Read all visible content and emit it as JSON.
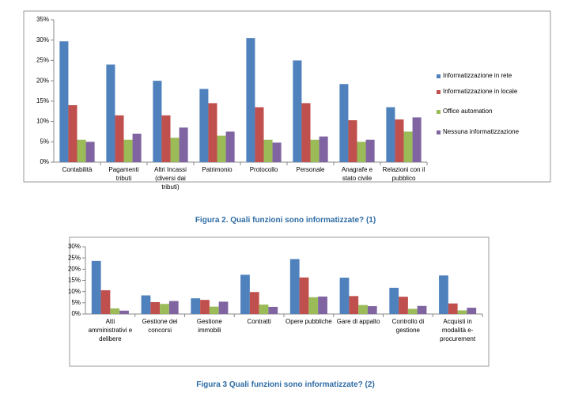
{
  "chart_data": [
    {
      "type": "bar",
      "categories": [
        "Contabilità",
        "Pagamenti tributi",
        "Altri Incassi (diversi dai tributi)",
        "Patrimonio",
        "Protocollo",
        "Personale",
        "Anagrafe e stato civile",
        "Relazioni con il pubblico"
      ],
      "series": [
        {
          "name": "Informatizzazione in rete",
          "color": "#4f81bd",
          "values": [
            29.7,
            24,
            20,
            18,
            30.5,
            25,
            19.2,
            13.5
          ]
        },
        {
          "name": "Informatizzazione in locale",
          "color": "#c0504d",
          "values": [
            14,
            11.5,
            11.5,
            14.5,
            13.5,
            14.5,
            10.3,
            10.5
          ]
        },
        {
          "name": "Office automation",
          "color": "#9bbb59",
          "values": [
            5.5,
            5.5,
            6,
            6.5,
            5.5,
            5.5,
            5,
            7.5
          ]
        },
        {
          "name": "Nessuna informatizzazione",
          "color": "#8064a2",
          "values": [
            5,
            7,
            8.5,
            7.5,
            4.8,
            6.3,
            5.5,
            11
          ]
        }
      ],
      "ylim": [
        0,
        35
      ],
      "yticks": [
        {
          "value": 0,
          "label": "0%"
        },
        {
          "value": 5,
          "label": "5%"
        },
        {
          "value": 10,
          "label": "10%"
        },
        {
          "value": 15,
          "label": "15%"
        },
        {
          "value": 20,
          "label": "20%"
        },
        {
          "value": 25,
          "label": "25%"
        },
        {
          "value": 30,
          "label": "30%"
        },
        {
          "value": 35,
          "label": "35%"
        }
      ],
      "grid": false,
      "legend": "right",
      "caption": "Figura 2. Quali funzioni sono informatizzate? (1)"
    },
    {
      "type": "bar",
      "categories": [
        "Atti amministrativi e delibere",
        "Gestione dei concorsi",
        "Gestione immobili",
        "Contratti",
        "Opere pubbliche",
        "Gare di appalto",
        "Controllo di gestione",
        "Acquisti in modalità e-procurement"
      ],
      "series": [
        {
          "color": "#4f81bd",
          "values": [
            23.7,
            8.3,
            7,
            17.5,
            24.5,
            16.2,
            11.7,
            17.2
          ]
        },
        {
          "color": "#c0504d",
          "values": [
            10.6,
            5.3,
            6.3,
            9.8,
            16.3,
            8,
            7.7,
            4.7
          ]
        },
        {
          "color": "#9bbb59",
          "values": [
            2.5,
            4.5,
            3.3,
            4.2,
            7.5,
            4,
            2.3,
            1.6
          ]
        },
        {
          "color": "#8064a2",
          "values": [
            1.5,
            5.8,
            5.5,
            3.2,
            7.8,
            3.5,
            3.6,
            2.8
          ]
        }
      ],
      "ylim": [
        0,
        30
      ],
      "yticks": [
        {
          "value": 0,
          "label": "0%"
        },
        {
          "value": 5,
          "label": "5%"
        },
        {
          "value": 10,
          "label": "10%"
        },
        {
          "value": 15,
          "label": "15%"
        },
        {
          "value": 20,
          "label": "20%"
        },
        {
          "value": 25,
          "label": "25%"
        },
        {
          "value": 30,
          "label": "30%"
        }
      ],
      "grid": false,
      "caption": "Figura 3 Quali funzioni sono informatizzate? (2)"
    }
  ]
}
